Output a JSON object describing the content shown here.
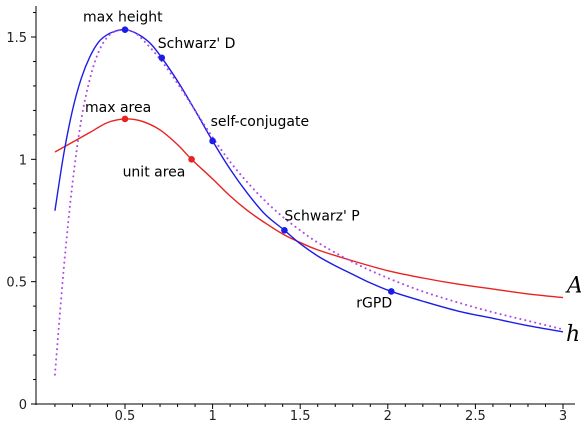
{
  "chart_data": {
    "type": "line",
    "title": "",
    "xlabel": "",
    "ylabel": "",
    "xlim": [
      0.05,
      3.05
    ],
    "ylim": [
      0,
      1.65
    ],
    "x_ticks": [
      {
        "value": 0.5,
        "label": "0.5"
      },
      {
        "value": 1,
        "label": "1"
      },
      {
        "value": 1.5,
        "label": "1.5"
      },
      {
        "value": 2,
        "label": "2"
      },
      {
        "value": 2.5,
        "label": "2.5"
      },
      {
        "value": 3,
        "label": "3"
      }
    ],
    "y_ticks": [
      {
        "value": 0,
        "label": "0"
      },
      {
        "value": 0.5,
        "label": "0.5"
      },
      {
        "value": 1,
        "label": "1"
      },
      {
        "value": 1.5,
        "label": "1.5"
      }
    ],
    "grid": false,
    "series": [
      {
        "name": "A",
        "color": "#e8231f",
        "style": "solid",
        "x": [
          0.1,
          0.2,
          0.3,
          0.4,
          0.5,
          0.6,
          0.7,
          0.8,
          0.88,
          1.0,
          1.1,
          1.2,
          1.3,
          1.4,
          1.5,
          1.6,
          1.8,
          2.0,
          2.2,
          2.4,
          2.6,
          2.8,
          3.0
        ],
        "y": [
          1.03,
          1.07,
          1.11,
          1.15,
          1.165,
          1.155,
          1.12,
          1.06,
          1.0,
          0.92,
          0.85,
          0.79,
          0.74,
          0.695,
          0.66,
          0.63,
          0.585,
          0.545,
          0.515,
          0.49,
          0.47,
          0.45,
          0.435
        ]
      },
      {
        "name": "h",
        "color": "#1c1ce8",
        "style": "solid",
        "x": [
          0.1,
          0.15,
          0.2,
          0.25,
          0.3,
          0.35,
          0.4,
          0.45,
          0.5,
          0.55,
          0.6,
          0.65,
          0.71,
          0.8,
          0.9,
          1.0,
          1.1,
          1.2,
          1.3,
          1.41,
          1.5,
          1.6,
          1.7,
          1.8,
          1.9,
          2.02,
          2.2,
          2.4,
          2.6,
          2.8,
          3.0
        ],
        "y": [
          0.79,
          1.02,
          1.2,
          1.33,
          1.42,
          1.48,
          1.51,
          1.525,
          1.53,
          1.52,
          1.5,
          1.47,
          1.415,
          1.32,
          1.2,
          1.075,
          0.96,
          0.86,
          0.775,
          0.71,
          0.655,
          0.605,
          0.565,
          0.53,
          0.495,
          0.46,
          0.42,
          0.38,
          0.35,
          0.32,
          0.295
        ]
      },
      {
        "name": "",
        "color": "#b04be8",
        "style": "dotted",
        "x": [
          0.1,
          0.15,
          0.2,
          0.25,
          0.3,
          0.35,
          0.4,
          0.45,
          0.5,
          0.55,
          0.6,
          0.7,
          0.8,
          0.9,
          1.0,
          1.1,
          1.2,
          1.3,
          1.4,
          1.5,
          1.6,
          1.8,
          2.0,
          2.2,
          2.4,
          2.6,
          2.8,
          3.0
        ],
        "y": [
          0.12,
          0.55,
          0.9,
          1.16,
          1.33,
          1.44,
          1.5,
          1.525,
          1.53,
          1.52,
          1.49,
          1.41,
          1.31,
          1.2,
          1.09,
          0.99,
          0.905,
          0.83,
          0.765,
          0.71,
          0.66,
          0.58,
          0.515,
          0.46,
          0.415,
          0.375,
          0.34,
          0.305
        ]
      }
    ],
    "points": [
      {
        "label": "max height",
        "x": 0.5,
        "y": 1.53,
        "color": "#1c1ce8"
      },
      {
        "label": "Schwarz' D",
        "x": 0.71,
        "y": 1.415,
        "color": "#1c1ce8"
      },
      {
        "label": "self-conjugate",
        "x": 1.0,
        "y": 1.075,
        "color": "#1c1ce8"
      },
      {
        "label": "Schwarz' P",
        "x": 1.41,
        "y": 0.71,
        "color": "#1c1ce8"
      },
      {
        "label": "rGPD",
        "x": 2.02,
        "y": 0.46,
        "color": "#1c1ce8"
      },
      {
        "label": "max area",
        "x": 0.5,
        "y": 1.165,
        "color": "#e8231f"
      },
      {
        "label": "unit area",
        "x": 0.88,
        "y": 1.0,
        "color": "#e8231f"
      }
    ],
    "curve_labels": [
      {
        "label": "A",
        "series": 0
      },
      {
        "label": "h",
        "series": 1
      }
    ]
  }
}
